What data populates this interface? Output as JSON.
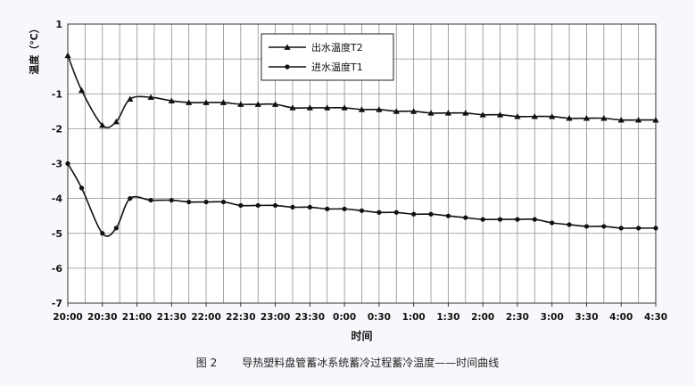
{
  "caption": {
    "figure_no": "图 2",
    "text": "导热塑料盘管蓄冰系统蓄冷过程蓄冷温度——时间曲线"
  },
  "chart_data": {
    "type": "line",
    "title": "",
    "xlabel": "时间",
    "ylabel": "温度（℃）",
    "ylim": [
      -7,
      1
    ],
    "yticks": [
      1,
      -1,
      -2,
      -3,
      -4,
      -5,
      -6,
      -7
    ],
    "xlim": [
      0,
      510
    ],
    "xticks": [
      0,
      30,
      60,
      90,
      120,
      150,
      180,
      210,
      240,
      270,
      300,
      330,
      360,
      390,
      420,
      450,
      480,
      510
    ],
    "xtick_labels": [
      "20:00",
      "20:30",
      "21:00",
      "21:30",
      "22:00",
      "22:30",
      "23:00",
      "23:30",
      "0:00",
      "0:30",
      "1:00",
      "1:30",
      "2:00",
      "2:30",
      "3:00",
      "3:30",
      "4:00",
      "4:30"
    ],
    "grid": true,
    "legend": "top-center",
    "series": [
      {
        "name": "出水温度T2",
        "marker": "triangle",
        "color": "#111111",
        "x": [
          0,
          12,
          30,
          42,
          54,
          72,
          90,
          105,
          120,
          135,
          150,
          165,
          180,
          195,
          210,
          225,
          240,
          255,
          270,
          285,
          300,
          315,
          330,
          345,
          360,
          375,
          390,
          405,
          420,
          435,
          450,
          465,
          480,
          495,
          510
        ],
        "y": [
          0.1,
          -0.9,
          -1.9,
          -1.8,
          -1.15,
          -1.1,
          -1.2,
          -1.25,
          -1.25,
          -1.25,
          -1.3,
          -1.3,
          -1.3,
          -1.4,
          -1.4,
          -1.4,
          -1.4,
          -1.45,
          -1.45,
          -1.5,
          -1.5,
          -1.55,
          -1.55,
          -1.55,
          -1.6,
          -1.6,
          -1.65,
          -1.65,
          -1.65,
          -1.7,
          -1.7,
          -1.7,
          -1.75,
          -1.75,
          -1.75
        ]
      },
      {
        "name": "进水温度T1",
        "marker": "circle",
        "color": "#111111",
        "x": [
          0,
          12,
          30,
          42,
          54,
          72,
          90,
          105,
          120,
          135,
          150,
          165,
          180,
          195,
          210,
          225,
          240,
          255,
          270,
          285,
          300,
          315,
          330,
          345,
          360,
          375,
          390,
          405,
          420,
          435,
          450,
          465,
          480,
          495,
          510
        ],
        "y": [
          -3.0,
          -3.7,
          -5.0,
          -4.85,
          -4.0,
          -4.05,
          -4.05,
          -4.1,
          -4.1,
          -4.1,
          -4.2,
          -4.2,
          -4.2,
          -4.25,
          -4.25,
          -4.3,
          -4.3,
          -4.35,
          -4.4,
          -4.4,
          -4.45,
          -4.45,
          -4.5,
          -4.55,
          -4.6,
          -4.6,
          -4.6,
          -4.6,
          -4.7,
          -4.75,
          -4.8,
          -4.8,
          -4.85,
          -4.85,
          -4.85
        ]
      }
    ]
  }
}
